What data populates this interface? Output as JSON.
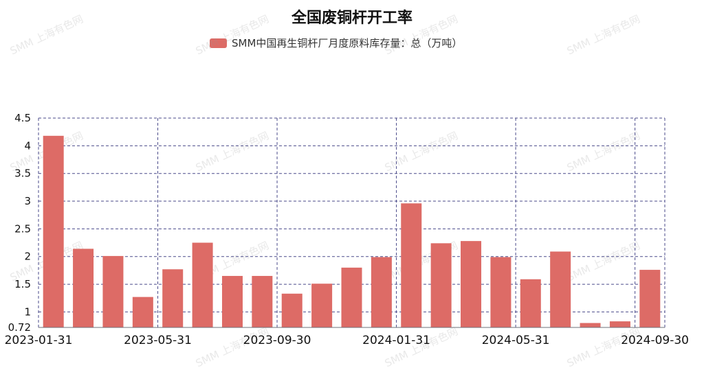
{
  "chart_data": {
    "type": "bar",
    "title": "全国废铜杆开工率",
    "series": [
      {
        "name": "SMM中国再生铜杆厂月度原料库存量：总（万吨）",
        "color": "#dd6b66",
        "values": [
          4.18,
          2.14,
          2.01,
          1.27,
          1.77,
          2.25,
          1.65,
          1.65,
          1.33,
          1.51,
          1.8,
          1.99,
          2.96,
          2.24,
          2.28,
          1.99,
          1.59,
          2.09,
          0.8,
          0.83,
          1.76
        ]
      }
    ],
    "categories": [
      "2023-01-31",
      "2023-02-28",
      "2023-03-31",
      "2023-04-30",
      "2023-05-31",
      "2023-06-30",
      "2023-07-31",
      "2023-08-31",
      "2023-09-30",
      "2023-10-31",
      "2023-11-30",
      "2023-12-31",
      "2024-01-31",
      "2024-02-29",
      "2024-03-31",
      "2024-04-30",
      "2024-05-31",
      "2024-06-30",
      "2024-07-31",
      "2024-08-31",
      "2024-09-30"
    ],
    "x_tick_labels": [
      "2023-01-31",
      "2023-05-31",
      "2023-09-30",
      "2024-01-31",
      "2024-05-31",
      "2024-09-30"
    ],
    "y_ticks": [
      "0.72",
      "1",
      "1.5",
      "2",
      "2.5",
      "3",
      "3.5",
      "4",
      "4.5"
    ],
    "ylim": [
      0.72,
      4.5
    ],
    "grid": true,
    "legend_position": "top-center",
    "watermark": "SMM 上海有色网"
  }
}
